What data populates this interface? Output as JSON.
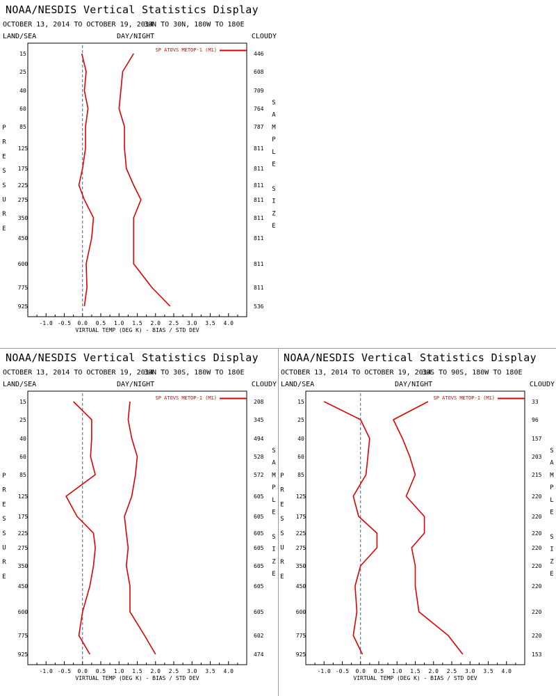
{
  "page": {
    "title": "NOAA/NESDIS Vertical Statistics Display",
    "date_range": "OCTOBER 13, 2014 TO OCTOBER 19, 2014",
    "land_sea": "LAND/SEA",
    "day_night": "DAY/NIGHT",
    "cloudy": "CLOUDY",
    "xlabel": "VIRTUAL TEMP (DEG K) - BIAS / STD DEV",
    "ylabel": "PRESSURE",
    "right_label": "SAMPLE SIZE",
    "legend_label": "SP ATOVS METOP-1 (M1)",
    "colors": {
      "series": "#dd0000",
      "zero_line": "#4a5a8a",
      "axis": "#000000"
    }
  },
  "chart_data": [
    {
      "type": "line",
      "region": "30N TO 30N, 180W TO 180E",
      "pressure_levels": [
        15,
        25,
        40,
        60,
        85,
        125,
        175,
        225,
        275,
        350,
        450,
        600,
        775,
        925
      ],
      "xlim": [
        -1.5,
        4.5
      ],
      "xticks": [
        "-1.0",
        "-0.5",
        "0.0",
        "0.5",
        "1.0",
        "1.5",
        "2.0",
        "2.5",
        "3.0",
        "3.5",
        "4.0"
      ],
      "series": [
        {
          "name": "SP ATOVS METOP-1 (M1)",
          "kind": "bias",
          "values": [
            -0.02,
            0.1,
            0.05,
            0.15,
            0.08,
            0.08,
            0.0,
            -0.1,
            0.05,
            0.3,
            0.25,
            0.1,
            0.12,
            0.05
          ]
        },
        {
          "kind": "std_dev",
          "values": [
            1.4,
            1.1,
            1.05,
            1.0,
            1.15,
            1.15,
            1.2,
            1.4,
            1.6,
            1.4,
            1.4,
            1.4,
            1.9,
            2.4
          ]
        }
      ],
      "sample_size": [
        "446",
        "608",
        "709",
        "764",
        "787",
        "811",
        "811",
        "811",
        "811",
        "811",
        "811",
        "811",
        "811",
        "536"
      ]
    },
    {
      "type": "line",
      "region": "30N TO 30S, 180W TO 180E",
      "pressure_levels": [
        15,
        25,
        40,
        60,
        85,
        125,
        175,
        225,
        275,
        350,
        450,
        600,
        775,
        925
      ],
      "xlim": [
        -1.5,
        4.5
      ],
      "xticks": [
        "-1.0",
        "-0.5",
        "0.0",
        "0.5",
        "1.0",
        "1.5",
        "2.0",
        "2.5",
        "3.0",
        "3.5",
        "4.0"
      ],
      "series": [
        {
          "name": "SP ATOVS METOP-1 (M1)",
          "kind": "bias",
          "values": [
            -0.25,
            0.25,
            0.25,
            0.22,
            0.35,
            -0.45,
            -0.15,
            0.3,
            0.35,
            0.3,
            0.2,
            0.0,
            -0.1,
            0.2
          ]
        },
        {
          "kind": "std_dev",
          "values": [
            1.3,
            1.25,
            1.35,
            1.5,
            1.45,
            1.35,
            1.15,
            1.2,
            1.25,
            1.2,
            1.3,
            1.3,
            1.7,
            2.0
          ]
        }
      ],
      "sample_size": [
        "208",
        "345",
        "494",
        "528",
        "572",
        "605",
        "605",
        "605",
        "605",
        "605",
        "605",
        "605",
        "602",
        "474"
      ]
    },
    {
      "type": "line",
      "region": "30S TO 90S, 180W TO 180E",
      "pressure_levels": [
        15,
        25,
        40,
        60,
        85,
        125,
        175,
        225,
        275,
        350,
        450,
        600,
        775,
        925
      ],
      "xlim": [
        -1.5,
        4.5
      ],
      "xticks": [
        "-1.0",
        "-0.5",
        "0.0",
        "0.5",
        "1.0",
        "1.5",
        "2.0",
        "2.5",
        "3.0",
        "3.5",
        "4.0"
      ],
      "series": [
        {
          "name": "SP ATOVS METOP-1 (M1)",
          "kind": "bias",
          "values": [
            -1.0,
            0.0,
            0.25,
            0.2,
            0.15,
            -0.2,
            -0.05,
            0.45,
            0.45,
            0.0,
            -0.15,
            -0.1,
            -0.2,
            0.05
          ]
        },
        {
          "kind": "std_dev",
          "values": [
            1.85,
            0.9,
            1.15,
            1.35,
            1.5,
            1.25,
            1.75,
            1.75,
            1.4,
            1.5,
            1.5,
            1.6,
            2.4,
            2.8
          ]
        }
      ],
      "sample_size": [
        "33",
        "96",
        "157",
        "203",
        "215",
        "220",
        "220",
        "220",
        "220",
        "220",
        "220",
        "220",
        "220",
        "153"
      ]
    }
  ]
}
